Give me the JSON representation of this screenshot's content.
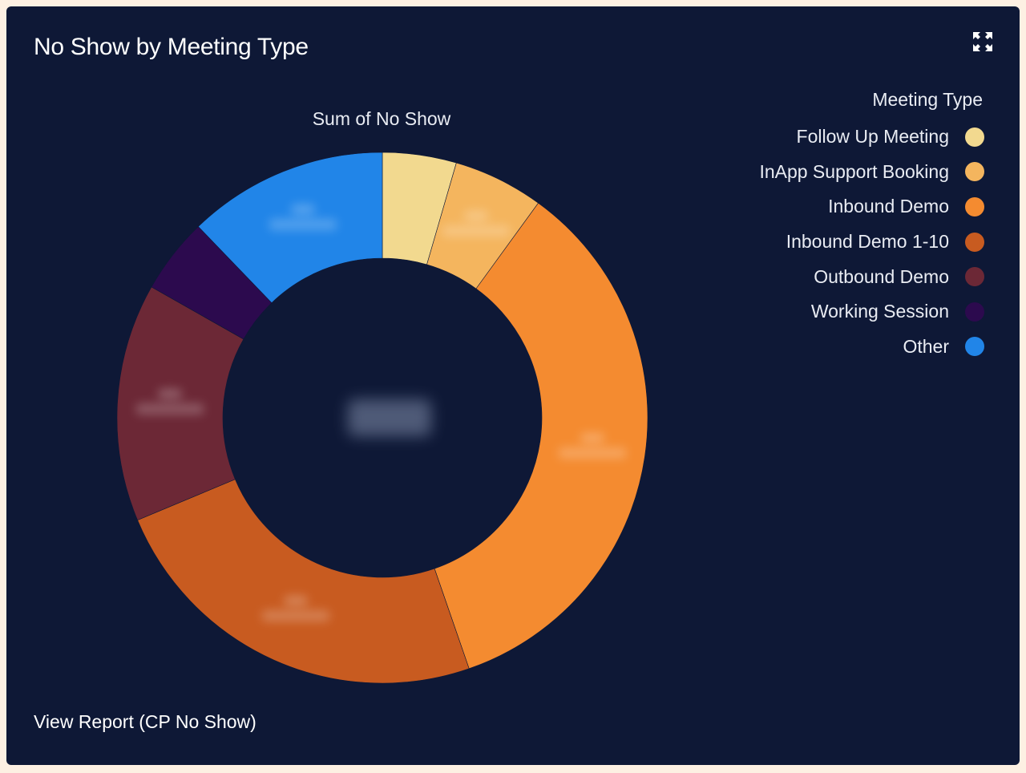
{
  "widget": {
    "title": "No Show by Meeting Type",
    "view_report_label": "View Report (CP No Show)",
    "expand_icon": "expand-arrows-icon"
  },
  "chart_data": {
    "type": "donut",
    "title": "Sum of No Show",
    "legend_title": "Meeting Type",
    "legend_position": "top-right",
    "categories": [
      "Follow Up Meeting",
      "InApp Support Booking",
      "Inbound Demo",
      "Inbound Demo 1-10",
      "Outbound Demo",
      "Working Session",
      "Other"
    ],
    "values": [
      4.5,
      5.5,
      34.7,
      24.0,
      14.5,
      4.6,
      12.2
    ],
    "value_unit": "percent of total (estimated; segment labels and total are blurred in the original)",
    "colors": [
      "#f2d98f",
      "#f4b55e",
      "#f48b30",
      "#c85b20",
      "#6c2836",
      "#2c0a4e",
      "#2185e8"
    ]
  }
}
